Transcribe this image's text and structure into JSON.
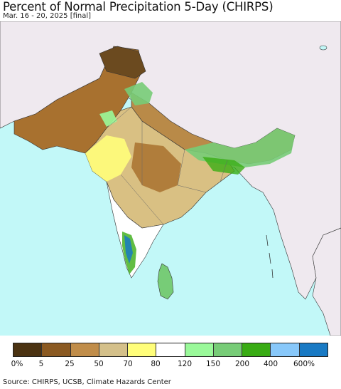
{
  "title": "Percent of Normal Precipitation 5-Day (CHIRPS)",
  "subtitle": "Mar. 16 - 20, 2025 [final]",
  "legend": {
    "colors": [
      "#4b3312",
      "#8b5a22",
      "#c08d4a",
      "#d4c08a",
      "#fffe7a",
      "#ffffff",
      "#9af99a",
      "#77cc77",
      "#39ac14",
      "#88c8fa",
      "#197ac4"
    ],
    "labels": [
      "0%",
      "5",
      "25",
      "50",
      "70",
      "80",
      "120",
      "150",
      "200",
      "400",
      "600%"
    ]
  },
  "map_colors": {
    "ocean": "#c2f8f8",
    "land_outside": "#efe9ef"
  },
  "source": "Source: CHIRPS, UCSB, Climate Hazards Center"
}
